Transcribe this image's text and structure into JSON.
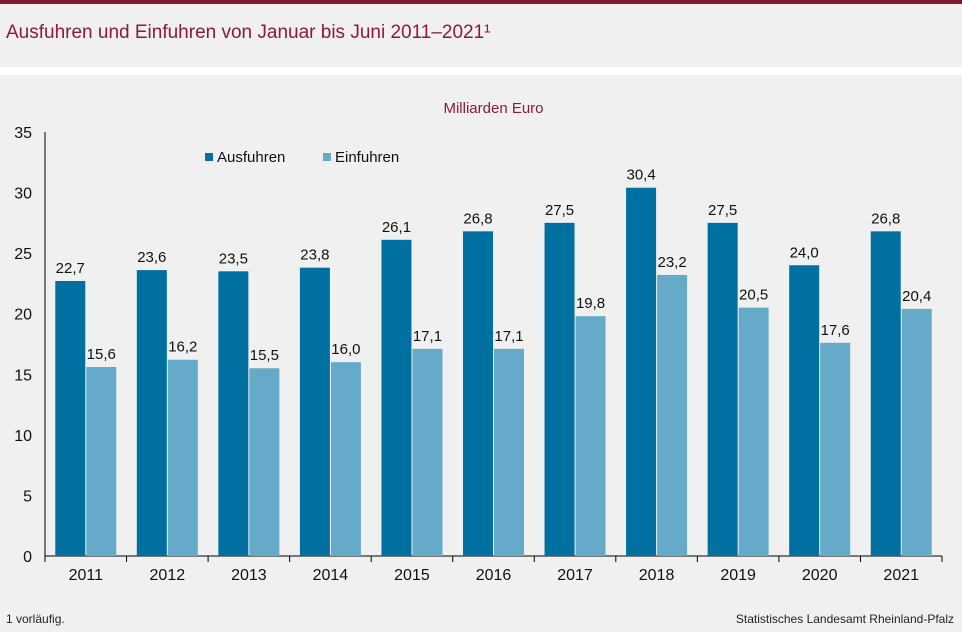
{
  "title": "Ausfuhren und Einfuhren von Januar bis Juni 2011–2021¹",
  "footnote": "1 vorläufig.",
  "source": "Statistisches Landesamt Rheinland-Pfalz",
  "colors": {
    "accent": "#7a1c2e",
    "title": "#8a1c36",
    "ausfuhren": "#0070a0",
    "einfuhren": "#66aac9"
  },
  "chart_data": {
    "type": "bar",
    "title": "",
    "ylabel": "Milliarden Euro",
    "xlabel": "",
    "categories": [
      "2011",
      "2012",
      "2013",
      "2014",
      "2015",
      "2016",
      "2017",
      "2018",
      "2019",
      "2020",
      "2021"
    ],
    "series": [
      {
        "name": "Ausfuhren",
        "values": [
          22.7,
          23.6,
          23.5,
          23.8,
          26.1,
          26.8,
          27.5,
          30.4,
          27.5,
          24.0,
          26.8
        ]
      },
      {
        "name": "Einfuhren",
        "values": [
          15.6,
          16.2,
          15.5,
          16.0,
          17.1,
          17.1,
          19.8,
          23.2,
          20.5,
          17.6,
          20.4
        ]
      }
    ],
    "ylim": [
      0,
      35
    ],
    "yticks": [
      0,
      5,
      10,
      15,
      20,
      25,
      30,
      35
    ],
    "grid": false,
    "legend": "top-left",
    "value_labels": true,
    "decimal_separator": ","
  }
}
